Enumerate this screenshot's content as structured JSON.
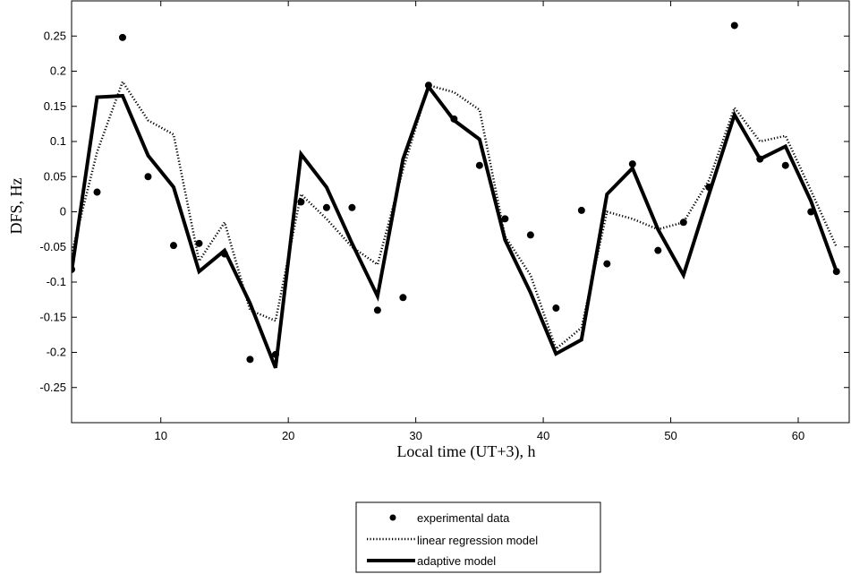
{
  "chart_data": {
    "type": "line",
    "title": "",
    "xlabel": "Local time (UT+3), h",
    "ylabel": "DFS, Hz",
    "xlim": [
      3,
      64
    ],
    "ylim": [
      -0.3,
      0.3
    ],
    "xticks": [
      10,
      20,
      30,
      40,
      50,
      60
    ],
    "yticks": [
      -0.25,
      -0.2,
      -0.15,
      -0.1,
      -0.05,
      0,
      0.05,
      0.1,
      0.15,
      0.2,
      0.25
    ],
    "ytick_labels": [
      "-0.25",
      "-0.2",
      "-0.15",
      "-0.1",
      "-0.05",
      "0",
      "0.05",
      "0.1",
      "0.15",
      "0.2",
      "0.25"
    ],
    "grid": false,
    "legend_position": "bottom-center",
    "series": [
      {
        "name": "experimental data",
        "style": "markers",
        "color": "#000000",
        "points": [
          [
            3,
            -0.082
          ],
          [
            5,
            0.028
          ],
          [
            7,
            0.248
          ],
          [
            9,
            0.05
          ],
          [
            11,
            -0.048
          ],
          [
            13,
            -0.045
          ],
          [
            15,
            -0.06
          ],
          [
            17,
            -0.21
          ],
          [
            19,
            -0.203
          ],
          [
            21,
            0.014
          ],
          [
            23,
            0.006
          ],
          [
            25,
            0.006
          ],
          [
            27,
            -0.14
          ],
          [
            29,
            -0.122
          ],
          [
            31,
            0.18
          ],
          [
            33,
            0.132
          ],
          [
            35,
            0.066
          ],
          [
            37,
            -0.01
          ],
          [
            39,
            -0.033
          ],
          [
            41,
            -0.137
          ],
          [
            43,
            0.002
          ],
          [
            45,
            -0.074
          ],
          [
            47,
            0.068
          ],
          [
            49,
            -0.055
          ],
          [
            51,
            -0.015
          ],
          [
            53,
            0.035
          ],
          [
            55,
            0.265
          ],
          [
            57,
            0.075
          ],
          [
            59,
            0.066
          ],
          [
            61,
            0.0
          ],
          [
            63,
            -0.085
          ]
        ]
      },
      {
        "name": "linear regression model",
        "style": "dotted",
        "color": "#000000",
        "points": [
          [
            3,
            -0.06
          ],
          [
            5,
            0.085
          ],
          [
            7,
            0.185
          ],
          [
            9,
            0.13
          ],
          [
            11,
            0.11
          ],
          [
            13,
            -0.07
          ],
          [
            15,
            -0.015
          ],
          [
            17,
            -0.14
          ],
          [
            19,
            -0.155
          ],
          [
            21,
            0.025
          ],
          [
            23,
            -0.01
          ],
          [
            25,
            -0.05
          ],
          [
            27,
            -0.075
          ],
          [
            29,
            0.06
          ],
          [
            31,
            0.18
          ],
          [
            33,
            0.17
          ],
          [
            35,
            0.145
          ],
          [
            37,
            -0.035
          ],
          [
            39,
            -0.09
          ],
          [
            41,
            -0.195
          ],
          [
            43,
            -0.165
          ],
          [
            45,
            0.0
          ],
          [
            47,
            -0.01
          ],
          [
            49,
            -0.025
          ],
          [
            51,
            -0.015
          ],
          [
            53,
            0.045
          ],
          [
            55,
            0.148
          ],
          [
            57,
            0.1
          ],
          [
            59,
            0.108
          ],
          [
            61,
            0.03
          ],
          [
            63,
            -0.05
          ]
        ]
      },
      {
        "name": "adaptive model",
        "style": "solid",
        "color": "#000000",
        "points": [
          [
            3,
            -0.085
          ],
          [
            5,
            0.163
          ],
          [
            7,
            0.165
          ],
          [
            9,
            0.08
          ],
          [
            11,
            0.035
          ],
          [
            13,
            -0.085
          ],
          [
            15,
            -0.055
          ],
          [
            17,
            -0.13
          ],
          [
            19,
            -0.222
          ],
          [
            21,
            0.082
          ],
          [
            23,
            0.035
          ],
          [
            25,
            -0.045
          ],
          [
            27,
            -0.12
          ],
          [
            29,
            0.075
          ],
          [
            31,
            0.178
          ],
          [
            33,
            0.13
          ],
          [
            35,
            0.103
          ],
          [
            37,
            -0.04
          ],
          [
            39,
            -0.115
          ],
          [
            41,
            -0.202
          ],
          [
            43,
            -0.182
          ],
          [
            45,
            0.025
          ],
          [
            47,
            0.062
          ],
          [
            49,
            -0.025
          ],
          [
            51,
            -0.09
          ],
          [
            53,
            0.025
          ],
          [
            55,
            0.138
          ],
          [
            57,
            0.075
          ],
          [
            59,
            0.093
          ],
          [
            61,
            0.015
          ],
          [
            63,
            -0.085
          ]
        ]
      }
    ]
  }
}
